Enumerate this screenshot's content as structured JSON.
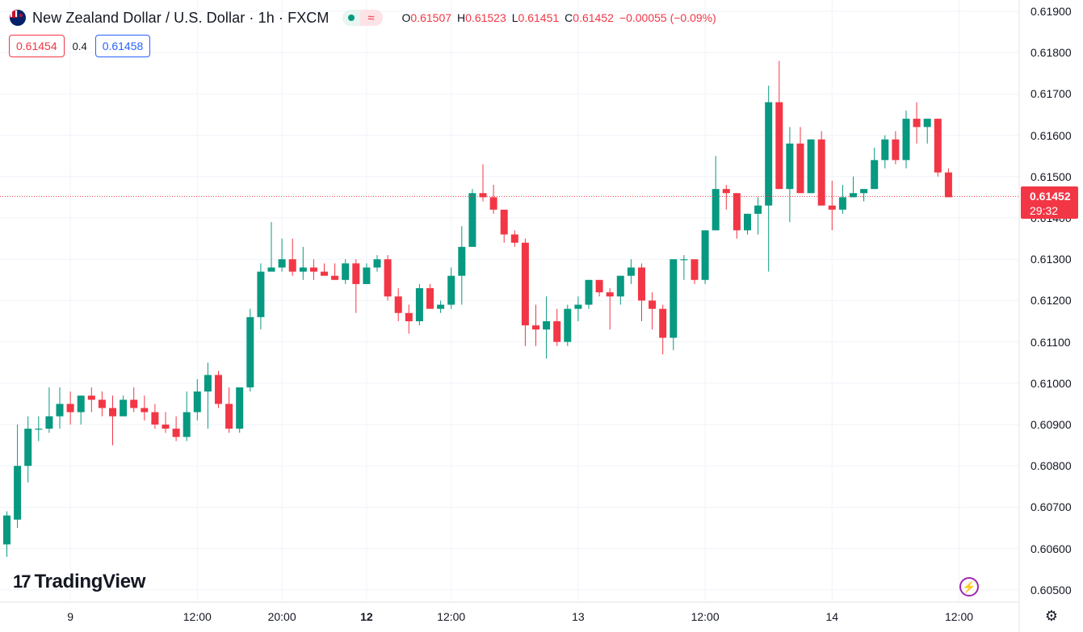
{
  "header": {
    "symbol_title": "New Zealand Dollar / U.S. Dollar · 1h · FXCM",
    "status_icon": "market-open-dot-icon",
    "wave_glyph": "≈",
    "ohlc": {
      "o_label": "O",
      "o_value": "0.61507",
      "h_label": "H",
      "h_value": "0.61523",
      "l_label": "L",
      "l_value": "0.61451",
      "c_label": "C",
      "c_value": "0.61452",
      "change": "−0.00055 (−0.09%)"
    }
  },
  "quote": {
    "sell": "0.61454",
    "spread": "0.4",
    "buy": "0.61458"
  },
  "last_price": {
    "price": "0.61452",
    "countdown": "29:32"
  },
  "logo": {
    "mark": "17",
    "text": "TradingView"
  },
  "colors": {
    "up": "#089981",
    "down": "#f23645",
    "grid": "#f0f3fa",
    "accent": "#9c27b0"
  },
  "chart_data": {
    "type": "candlestick",
    "title": "New Zealand Dollar / U.S. Dollar · 1h · FXCM",
    "y_ticks": [
      "0.61900",
      "0.61800",
      "0.61700",
      "0.61600",
      "0.61500",
      "0.61400",
      "0.61300",
      "0.61200",
      "0.61100",
      "0.61000",
      "0.60900",
      "0.60800",
      "0.60700",
      "0.60600",
      "0.60500"
    ],
    "ylim": [
      0.6048,
      0.6193
    ],
    "x_ticks": [
      {
        "label": "9",
        "index": 6,
        "bold": false
      },
      {
        "label": "12:00",
        "index": 18,
        "bold": false
      },
      {
        "label": "20:00",
        "index": 26,
        "bold": false
      },
      {
        "label": "12",
        "index": 34,
        "bold": true
      },
      {
        "label": "12:00",
        "index": 42,
        "bold": false
      },
      {
        "label": "13",
        "index": 54,
        "bold": false
      },
      {
        "label": "12:00",
        "index": 66,
        "bold": false
      },
      {
        "label": "14",
        "index": 78,
        "bold": false
      },
      {
        "label": "12:00",
        "index": 90,
        "bold": false
      }
    ],
    "candles": [
      [
        0.6061,
        0.6069,
        0.6058,
        0.6068
      ],
      [
        0.6067,
        0.609,
        0.6065,
        0.608
      ],
      [
        0.608,
        0.6092,
        0.6076,
        0.6089
      ],
      [
        0.6089,
        0.6092,
        0.6086,
        0.6089
      ],
      [
        0.6089,
        0.6099,
        0.6088,
        0.6092
      ],
      [
        0.6092,
        0.6099,
        0.6089,
        0.6095
      ],
      [
        0.6095,
        0.6098,
        0.609,
        0.6093
      ],
      [
        0.6093,
        0.6097,
        0.609,
        0.6097
      ],
      [
        0.6097,
        0.6099,
        0.6093,
        0.6096
      ],
      [
        0.6096,
        0.6098,
        0.6092,
        0.6094
      ],
      [
        0.6094,
        0.6097,
        0.6085,
        0.6092
      ],
      [
        0.6092,
        0.6097,
        0.6092,
        0.6096
      ],
      [
        0.6096,
        0.6099,
        0.6093,
        0.6094
      ],
      [
        0.6094,
        0.6097,
        0.6091,
        0.6093
      ],
      [
        0.6093,
        0.6095,
        0.6089,
        0.609
      ],
      [
        0.609,
        0.6093,
        0.6088,
        0.6089
      ],
      [
        0.6089,
        0.6092,
        0.6086,
        0.6087
      ],
      [
        0.6087,
        0.6098,
        0.6086,
        0.6093
      ],
      [
        0.6093,
        0.6101,
        0.6091,
        0.6098
      ],
      [
        0.6098,
        0.6105,
        0.6089,
        0.6102
      ],
      [
        0.6102,
        0.6103,
        0.6094,
        0.6095
      ],
      [
        0.6095,
        0.6099,
        0.6088,
        0.6089
      ],
      [
        0.6089,
        0.6099,
        0.6088,
        0.6099
      ],
      [
        0.6099,
        0.6118,
        0.6098,
        0.6116
      ],
      [
        0.6116,
        0.6129,
        0.6113,
        0.6127
      ],
      [
        0.6127,
        0.6139,
        0.6127,
        0.6128
      ],
      [
        0.6128,
        0.6135,
        0.6127,
        0.613
      ],
      [
        0.613,
        0.6135,
        0.6126,
        0.6127
      ],
      [
        0.6127,
        0.6133,
        0.6125,
        0.6128
      ],
      [
        0.6128,
        0.613,
        0.6125,
        0.6127
      ],
      [
        0.6127,
        0.6129,
        0.6126,
        0.6126
      ],
      [
        0.6126,
        0.6129,
        0.6125,
        0.6125
      ],
      [
        0.6125,
        0.613,
        0.6124,
        0.6129
      ],
      [
        0.6129,
        0.613,
        0.6117,
        0.6124
      ],
      [
        0.6124,
        0.6129,
        0.6124,
        0.6128
      ],
      [
        0.6128,
        0.6131,
        0.6127,
        0.613
      ],
      [
        0.613,
        0.6131,
        0.612,
        0.6121
      ],
      [
        0.6121,
        0.6123,
        0.6115,
        0.6117
      ],
      [
        0.6117,
        0.6119,
        0.6112,
        0.6115
      ],
      [
        0.6115,
        0.6124,
        0.6114,
        0.6123
      ],
      [
        0.6123,
        0.6124,
        0.6118,
        0.6118
      ],
      [
        0.6118,
        0.612,
        0.6117,
        0.6119
      ],
      [
        0.6119,
        0.6128,
        0.6118,
        0.6126
      ],
      [
        0.6126,
        0.6138,
        0.6119,
        0.6133
      ],
      [
        0.6133,
        0.6147,
        0.6133,
        0.6146
      ],
      [
        0.6146,
        0.6153,
        0.6144,
        0.6145
      ],
      [
        0.6145,
        0.6148,
        0.6141,
        0.6142
      ],
      [
        0.6142,
        0.6141,
        0.6134,
        0.6136
      ],
      [
        0.6136,
        0.6137,
        0.6133,
        0.6134
      ],
      [
        0.6134,
        0.6135,
        0.6109,
        0.6114
      ],
      [
        0.6114,
        0.6119,
        0.6109,
        0.6113
      ],
      [
        0.6113,
        0.6121,
        0.6106,
        0.6115
      ],
      [
        0.6115,
        0.6118,
        0.6109,
        0.611
      ],
      [
        0.611,
        0.6119,
        0.6109,
        0.6118
      ],
      [
        0.6118,
        0.6121,
        0.6115,
        0.6119
      ],
      [
        0.6119,
        0.6125,
        0.6118,
        0.6125
      ],
      [
        0.6125,
        0.6125,
        0.6121,
        0.6122
      ],
      [
        0.6122,
        0.6123,
        0.6113,
        0.6121
      ],
      [
        0.6121,
        0.6126,
        0.6119,
        0.6126
      ],
      [
        0.6126,
        0.613,
        0.6124,
        0.6128
      ],
      [
        0.6128,
        0.6129,
        0.6115,
        0.612
      ],
      [
        0.612,
        0.6122,
        0.6113,
        0.6118
      ],
      [
        0.6118,
        0.6119,
        0.6107,
        0.6111
      ],
      [
        0.6111,
        0.613,
        0.6108,
        0.613
      ],
      [
        0.613,
        0.6131,
        0.6125,
        0.613
      ],
      [
        0.613,
        0.613,
        0.6124,
        0.6125
      ],
      [
        0.6125,
        0.6137,
        0.6124,
        0.6137
      ],
      [
        0.6137,
        0.6155,
        0.6137,
        0.6147
      ],
      [
        0.6147,
        0.6148,
        0.6142,
        0.6146
      ],
      [
        0.6146,
        0.6146,
        0.6135,
        0.6137
      ],
      [
        0.6137,
        0.6141,
        0.6136,
        0.6141
      ],
      [
        0.6141,
        0.6145,
        0.6136,
        0.6143
      ],
      [
        0.6143,
        0.6172,
        0.6127,
        0.6168
      ],
      [
        0.6168,
        0.6178,
        0.6147,
        0.6147
      ],
      [
        0.6147,
        0.6162,
        0.6139,
        0.6158
      ],
      [
        0.6158,
        0.6162,
        0.6146,
        0.6146
      ],
      [
        0.6146,
        0.6159,
        0.6146,
        0.6159
      ],
      [
        0.6159,
        0.6161,
        0.6143,
        0.6143
      ],
      [
        0.6143,
        0.6149,
        0.6137,
        0.6142
      ],
      [
        0.6142,
        0.6148,
        0.6141,
        0.6145
      ],
      [
        0.6145,
        0.615,
        0.6145,
        0.6146
      ],
      [
        0.6146,
        0.6147,
        0.6144,
        0.6147
      ],
      [
        0.6147,
        0.6157,
        0.6147,
        0.6154
      ],
      [
        0.6154,
        0.616,
        0.6152,
        0.6159
      ],
      [
        0.6159,
        0.6161,
        0.6153,
        0.6154
      ],
      [
        0.6154,
        0.6166,
        0.6152,
        0.6164
      ],
      [
        0.6164,
        0.6168,
        0.6158,
        0.6162
      ],
      [
        0.6162,
        0.6164,
        0.6158,
        0.6164
      ],
      [
        0.6164,
        0.6164,
        0.615,
        0.6151
      ],
      [
        0.6151,
        0.6152,
        0.6145,
        0.6145
      ]
    ],
    "last_close": 0.61452,
    "grid": true
  }
}
